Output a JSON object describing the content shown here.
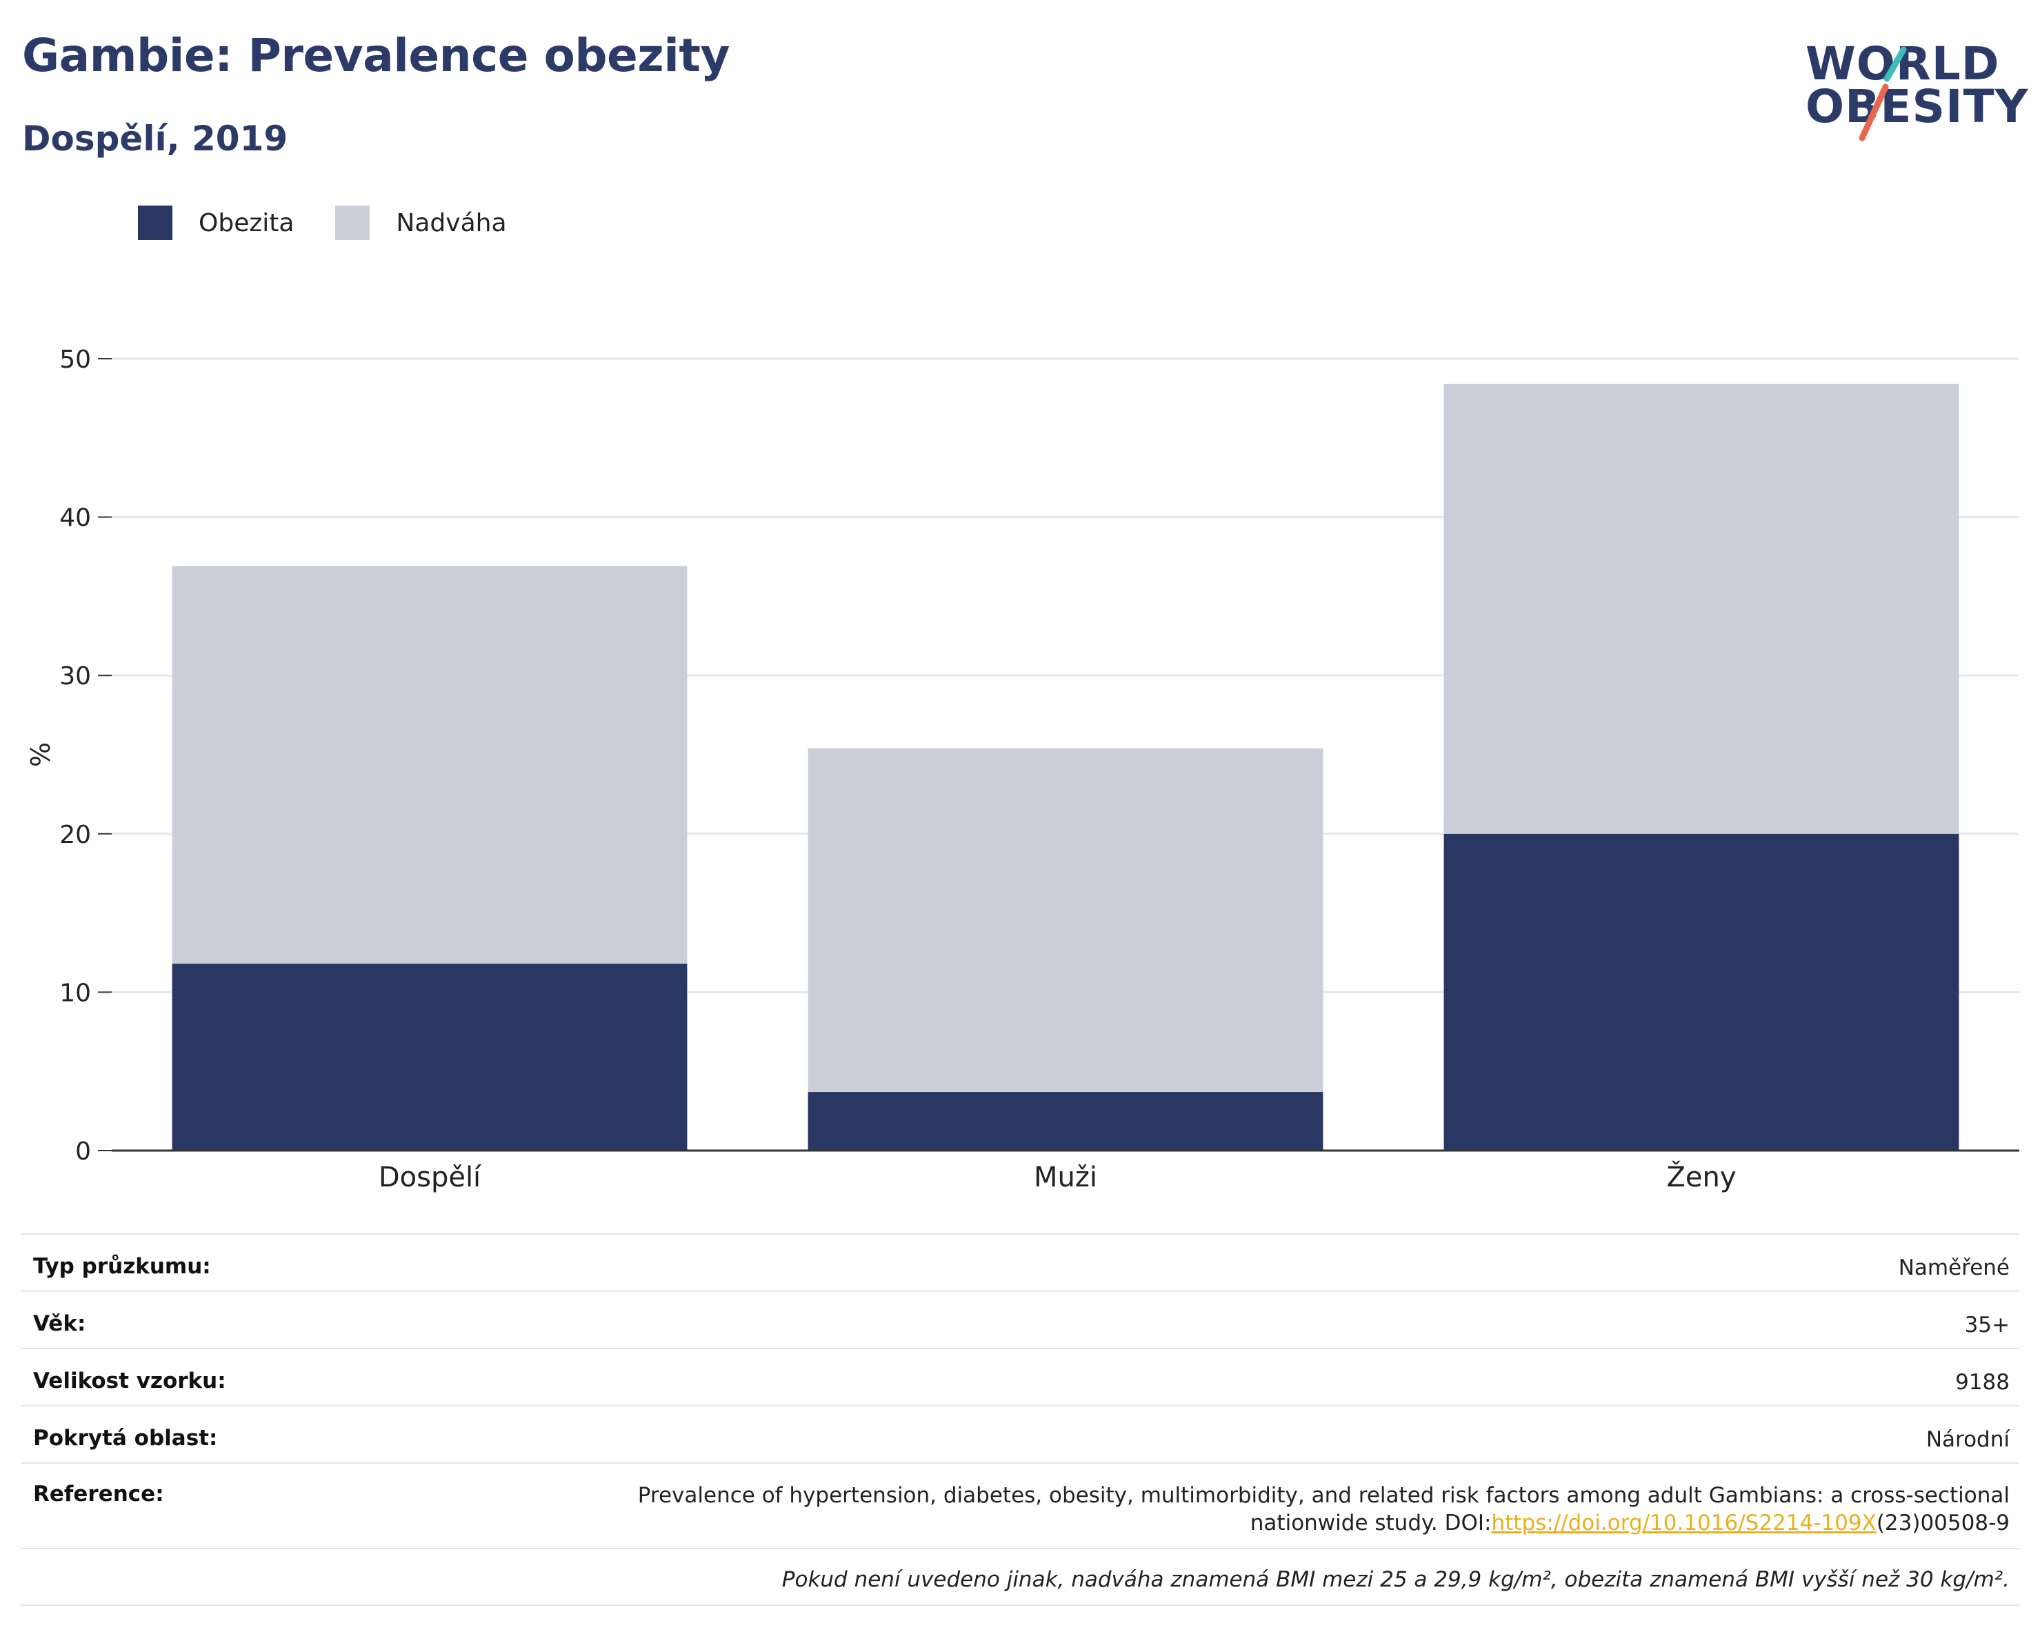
{
  "header": {
    "title": "Gambie: Prevalence obezity",
    "subtitle": "Dospělí, 2019"
  },
  "logo": {
    "line1": "WORLD",
    "line2": "OBESITY",
    "slash_colors": [
      "#3cbcbc",
      "#e8664f"
    ]
  },
  "legend": {
    "items": [
      {
        "label": "Obezita",
        "color": "#2b3763"
      },
      {
        "label": "Nadváha",
        "color": "#cbcdd8"
      }
    ]
  },
  "chart_data": {
    "type": "bar",
    "stacked": true,
    "categories": [
      "Dospělí",
      "Muži",
      "Ženy"
    ],
    "series": [
      {
        "name": "Obezita",
        "values": [
          11.8,
          3.7,
          20.0
        ],
        "color": "#2b3763"
      },
      {
        "name": "Nadváha",
        "values": [
          25.1,
          21.7,
          28.4
        ],
        "color": "#cbcdd8"
      }
    ],
    "xlabel": "",
    "ylabel": "%",
    "ylim": [
      0,
      50
    ],
    "yticks": [
      0,
      10,
      20,
      30,
      40,
      50
    ],
    "grid": true,
    "legend_position": "top-left"
  },
  "info": {
    "rows": [
      {
        "label": "Typ průzkumu:",
        "value": "Naměřené"
      },
      {
        "label": "Věk:",
        "value": "35+"
      },
      {
        "label": "Velikost vzorku:",
        "value": "9188"
      },
      {
        "label": "Pokrytá oblast:",
        "value": "Národní"
      }
    ],
    "reference": {
      "label": "Reference:",
      "text_line1": "Prevalence of hypertension, diabetes, obesity, multimorbidity, and related risk factors among adult Gambians: a cross-sectional",
      "text_line2_prefix": "nationwide study. DOI:",
      "doi_link": "https://doi.org/10.1016/S2214-109X",
      "doi_suffix": "(23)00508-9"
    },
    "note": "Pokud není uvedeno jinak, nadváha znamená BMI mezi 25 a 29,9 kg/m², obezita znamená BMI vyšší než 30 kg/m²."
  }
}
